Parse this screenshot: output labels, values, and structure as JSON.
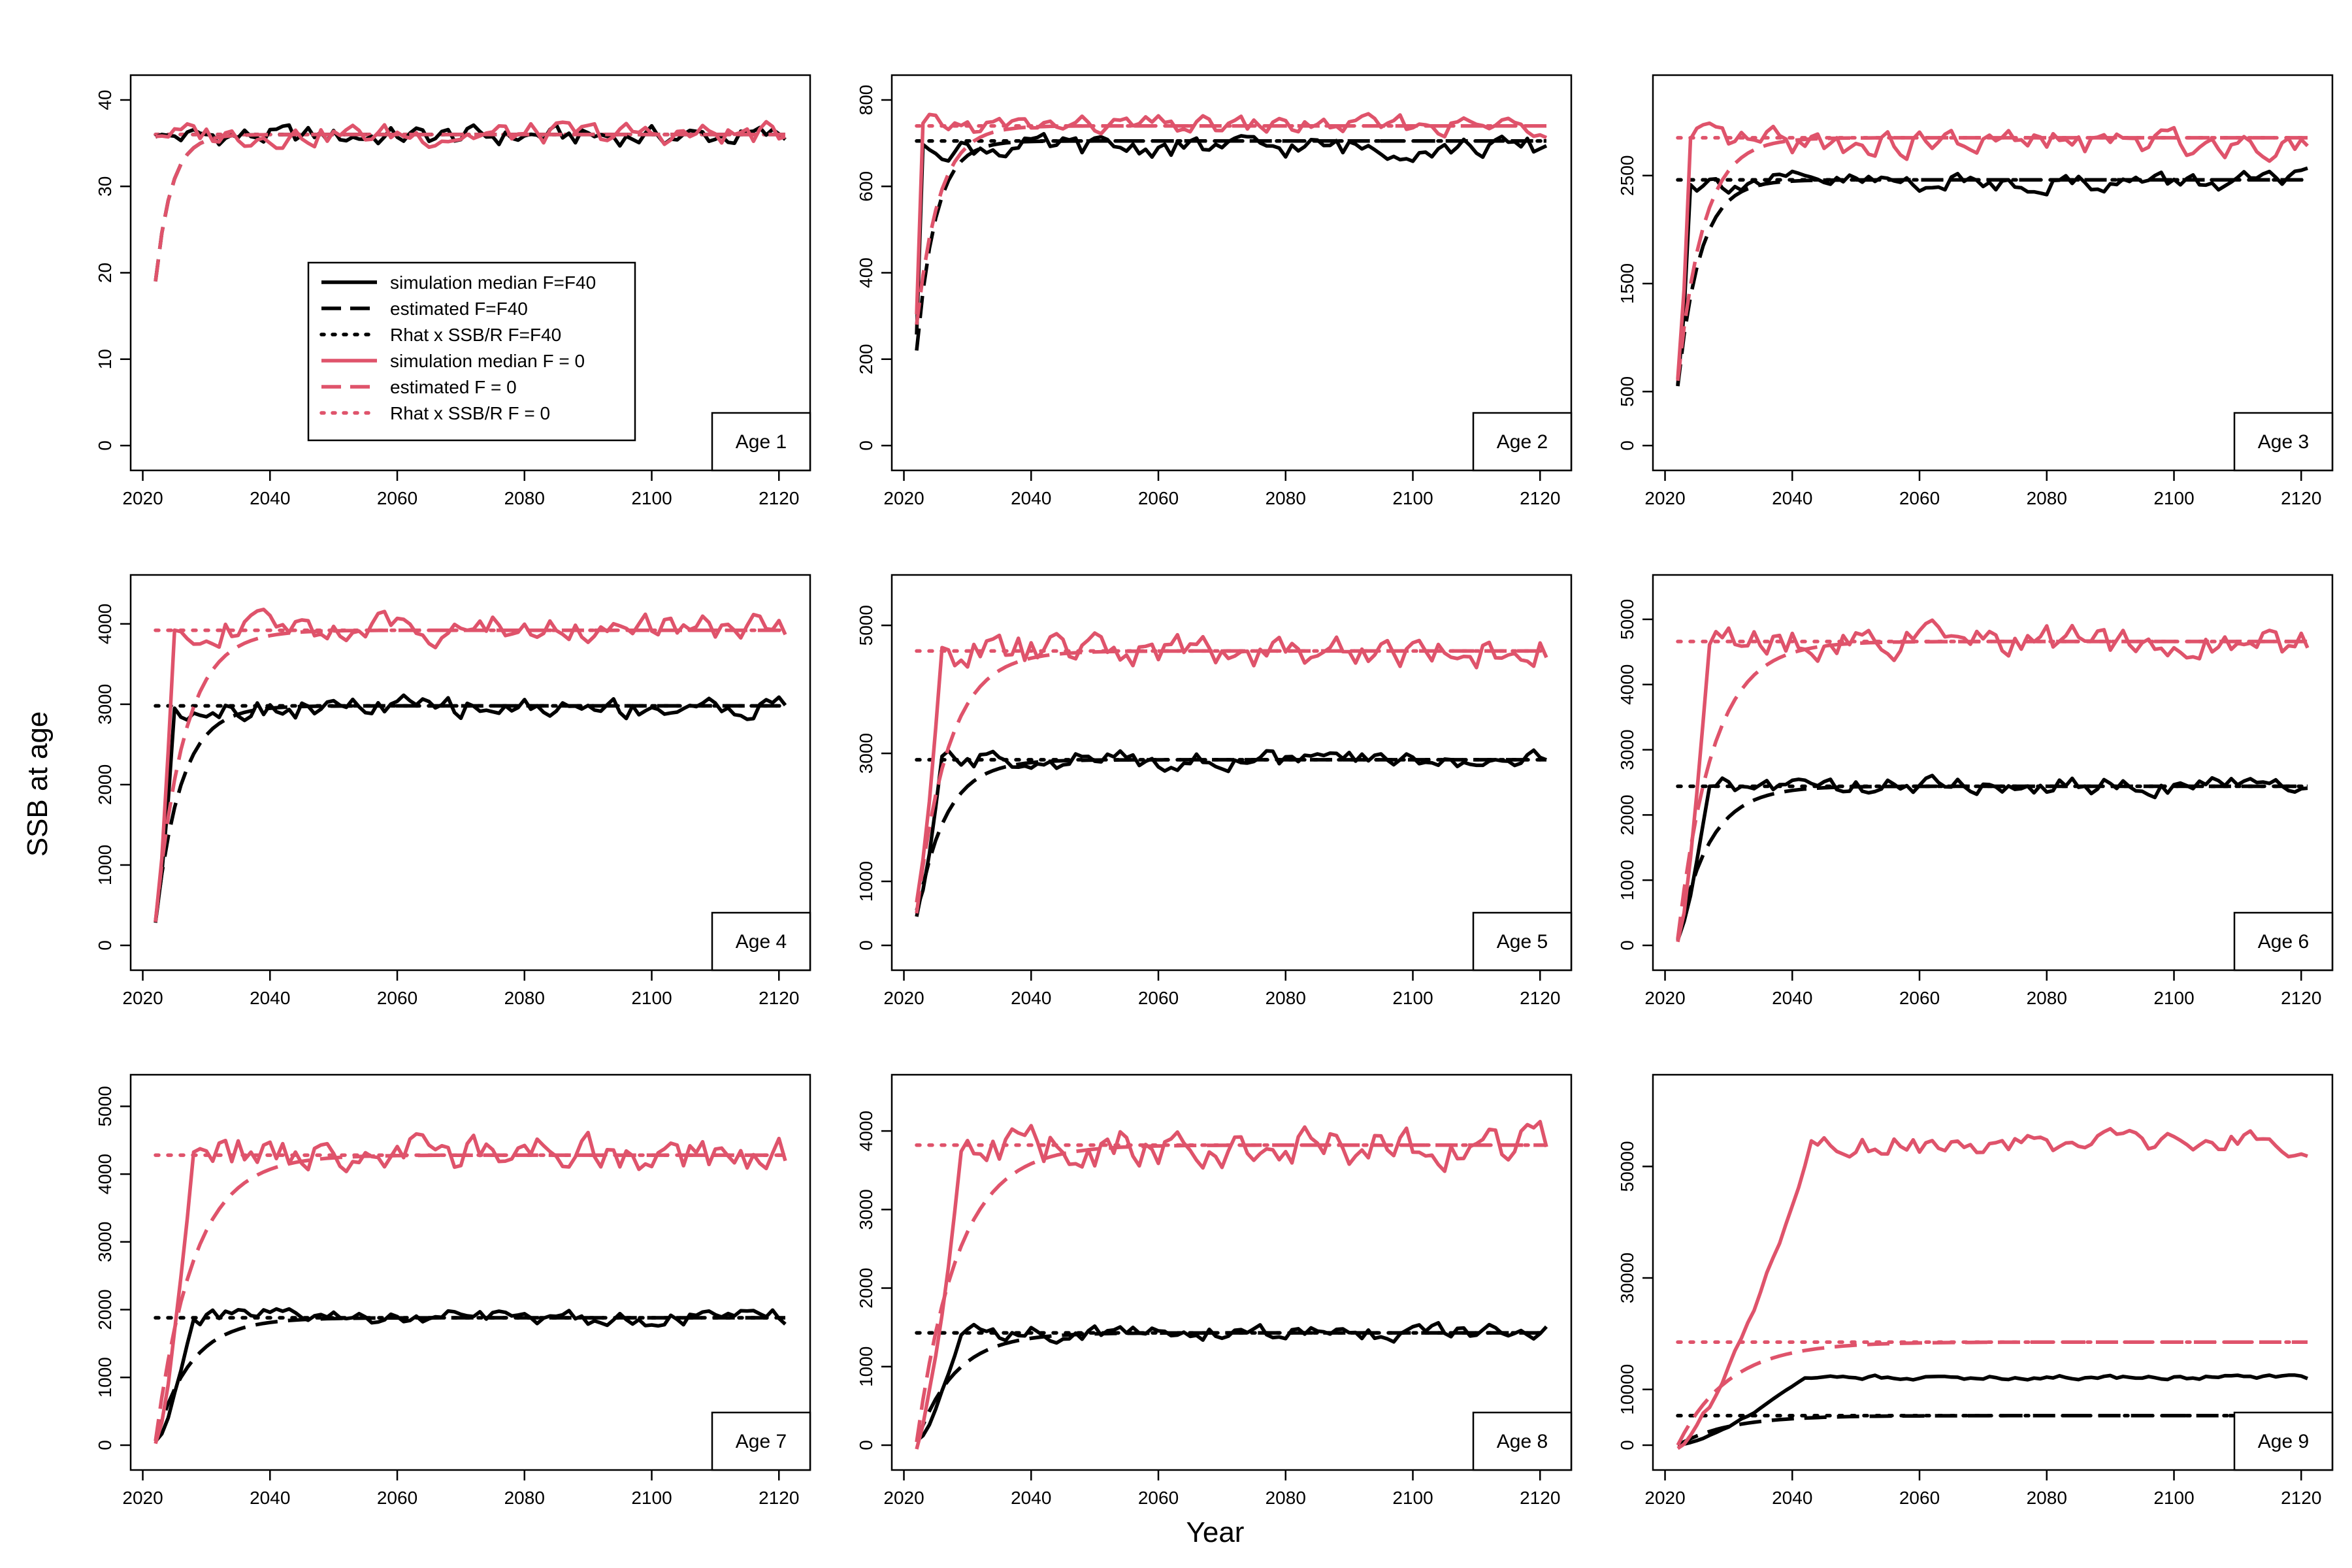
{
  "figure": {
    "xlabel": "Year",
    "ylabel": "SSB at age",
    "colors": {
      "f40": "#000000",
      "f0": "#DF536B"
    }
  },
  "legend": {
    "entries": [
      {
        "label": "simulation median F=F40",
        "series": "sim_f40"
      },
      {
        "label": "estimated F=F40",
        "series": "est_f40"
      },
      {
        "label": "Rhat x SSB/R F=F40",
        "series": "rhat_f40"
      },
      {
        "label": "simulation median F = 0",
        "series": "sim_f0"
      },
      {
        "label": "estimated F = 0",
        "series": "est_f0"
      },
      {
        "label": "Rhat x SSB/R F = 0",
        "series": "rhat_f0"
      }
    ]
  },
  "chart_data": [
    {
      "type": "line",
      "panel_label": "Age 1",
      "xlim": [
        2022,
        2121
      ],
      "ylim": [
        0,
        40
      ],
      "xticks": [
        2020,
        2040,
        2060,
        2080,
        2100,
        2120
      ],
      "yticks": [
        0,
        10,
        20,
        30,
        40
      ],
      "rhat_f40": 36,
      "rhat_f0": 36,
      "est_f40": {
        "start": 19,
        "plateau": 36,
        "tau": 2.5
      },
      "est_f0": {
        "start": 19,
        "plateau": 36,
        "tau": 2.5
      },
      "sim_f40": {
        "start": 36,
        "ramp_end": 2024,
        "plateau": 35.8,
        "amp": 1.1
      },
      "sim_f0": {
        "start": 36,
        "ramp_end": 2024,
        "plateau": 36.0,
        "amp": 1.2
      }
    },
    {
      "type": "line",
      "panel_label": "Age 2",
      "xlim": [
        2022,
        2121
      ],
      "ylim": [
        0,
        800
      ],
      "xticks": [
        2020,
        2040,
        2060,
        2080,
        2100,
        2120
      ],
      "yticks": [
        0,
        200,
        400,
        600,
        800
      ],
      "rhat_f40": 705,
      "rhat_f0": 740,
      "est_f40": {
        "start": 220,
        "plateau": 705,
        "tau": 3.0
      },
      "est_f0": {
        "start": 280,
        "plateau": 740,
        "tau": 3.5
      },
      "sim_f40": {
        "start": 260,
        "ramp_end": 2023,
        "plateau": 690,
        "amp": 22
      },
      "sim_f0": {
        "start": 300,
        "ramp_end": 2023,
        "plateau": 740,
        "amp": 20
      }
    },
    {
      "type": "line",
      "panel_label": "Age 3",
      "xlim": [
        2022,
        2121
      ],
      "ylim": [
        0,
        3200
      ],
      "xticks": [
        2020,
        2040,
        2060,
        2080,
        2100,
        2120
      ],
      "yticks": [
        0,
        500,
        1500,
        2500
      ],
      "rhat_f40": 2460,
      "rhat_f0": 2850,
      "est_f40": {
        "start": 550,
        "plateau": 2460,
        "tau": 3.5
      },
      "est_f0": {
        "start": 600,
        "plateau": 2850,
        "tau": 4.0
      },
      "sim_f40": {
        "start": 550,
        "ramp_end": 2024,
        "plateau": 2440,
        "amp": 80
      },
      "sim_f0": {
        "start": 600,
        "ramp_end": 2024,
        "plateau": 2800,
        "amp": 110
      }
    },
    {
      "type": "line",
      "panel_label": "Age 4",
      "xlim": [
        2022,
        2121
      ],
      "ylim": [
        0,
        4300
      ],
      "xticks": [
        2020,
        2040,
        2060,
        2080,
        2100,
        2120
      ],
      "yticks": [
        0,
        1000,
        2000,
        3000,
        4000
      ],
      "rhat_f40": 2980,
      "rhat_f0": 3920,
      "est_f40": {
        "start": 300,
        "plateau": 2980,
        "tau": 4.0
      },
      "est_f0": {
        "start": 300,
        "plateau": 3920,
        "tau": 4.5
      },
      "sim_f40": {
        "start": 300,
        "ramp_end": 2025,
        "plateau": 2960,
        "amp": 120
      },
      "sim_f0": {
        "start": 300,
        "ramp_end": 2025,
        "plateau": 3950,
        "amp": 160
      }
    },
    {
      "type": "line",
      "panel_label": "Age 5",
      "xlim": [
        2022,
        2121
      ],
      "ylim": [
        0,
        5400
      ],
      "xticks": [
        2020,
        2040,
        2060,
        2080,
        2100,
        2120
      ],
      "yticks": [
        0,
        1000,
        3000,
        5000
      ],
      "rhat_f40": 2900,
      "rhat_f0": 4600,
      "est_f40": {
        "start": 450,
        "plateau": 2900,
        "tau": 4.5
      },
      "est_f0": {
        "start": 500,
        "plateau": 4600,
        "tau": 5.0
      },
      "sim_f40": {
        "start": 500,
        "ramp_end": 2026,
        "plateau": 2900,
        "amp": 130
      },
      "sim_f0": {
        "start": 700,
        "ramp_end": 2026,
        "plateau": 4600,
        "amp": 240
      }
    },
    {
      "type": "line",
      "panel_label": "Age 6",
      "xlim": [
        2022,
        2121
      ],
      "ylim": [
        0,
        5300
      ],
      "xticks": [
        2020,
        2040,
        2060,
        2080,
        2100,
        2120
      ],
      "yticks": [
        0,
        1000,
        2000,
        3000,
        4000,
        5000
      ],
      "rhat_f40": 2440,
      "rhat_f0": 4660,
      "est_f40": {
        "start": 100,
        "plateau": 2440,
        "tau": 5.0
      },
      "est_f0": {
        "start": 100,
        "plateau": 4660,
        "tau": 5.5
      },
      "sim_f40": {
        "start": 100,
        "ramp_end": 2027,
        "plateau": 2450,
        "amp": 120
      },
      "sim_f0": {
        "start": 100,
        "ramp_end": 2027,
        "plateau": 4650,
        "amp": 220
      }
    },
    {
      "type": "line",
      "panel_label": "Age 7",
      "xlim": [
        2022,
        2121
      ],
      "ylim": [
        0,
        5100
      ],
      "xticks": [
        2020,
        2040,
        2060,
        2080,
        2100,
        2120
      ],
      "yticks": [
        0,
        1000,
        2000,
        3000,
        4000,
        5000
      ],
      "rhat_f40": 1880,
      "rhat_f0": 4280,
      "est_f40": {
        "start": 60,
        "plateau": 1880,
        "tau": 5.5
      },
      "est_f0": {
        "start": 60,
        "plateau": 4280,
        "tau": 6.0
      },
      "sim_f40": {
        "start": 60,
        "ramp_end": 2028,
        "plateau": 1880,
        "amp": 110
      },
      "sim_f0": {
        "start": 60,
        "ramp_end": 2028,
        "plateau": 4300,
        "amp": 250
      }
    },
    {
      "type": "line",
      "panel_label": "Age 8",
      "xlim": [
        2022,
        2121
      ],
      "ylim": [
        0,
        4400
      ],
      "xticks": [
        2020,
        2040,
        2060,
        2080,
        2100,
        2120
      ],
      "yticks": [
        0,
        1000,
        2000,
        3000,
        4000
      ],
      "rhat_f40": 1430,
      "rhat_f0": 3820,
      "est_f40": {
        "start": 40,
        "plateau": 1430,
        "tau": 6.0
      },
      "est_f0": {
        "start": 40,
        "plateau": 3820,
        "tau": 6.5
      },
      "sim_f40": {
        "start": 40,
        "ramp_end": 2029,
        "plateau": 1430,
        "amp": 90
      },
      "sim_f0": {
        "start": 40,
        "ramp_end": 2029,
        "plateau": 3800,
        "amp": 230
      }
    },
    {
      "type": "line",
      "panel_label": "Age 9",
      "xlim": [
        2022,
        2121
      ],
      "ylim": [
        0,
        62000
      ],
      "xticks": [
        2020,
        2040,
        2060,
        2080,
        2100,
        2120
      ],
      "yticks": [
        0,
        10000,
        30000,
        50000
      ],
      "rhat_f40": 5300,
      "rhat_f0": 18500,
      "est_f40": {
        "start": 0,
        "plateau": 5300,
        "tau": 8.0
      },
      "est_f0": {
        "start": 0,
        "plateau": 18500,
        "tau": 8.0
      },
      "sim_f40": {
        "start": 0,
        "ramp_end": 2042,
        "plateau": 12200,
        "amp": 350
      },
      "sim_f0": {
        "start": 0,
        "ramp_end": 2043,
        "plateau": 54000,
        "amp": 1800
      }
    }
  ]
}
